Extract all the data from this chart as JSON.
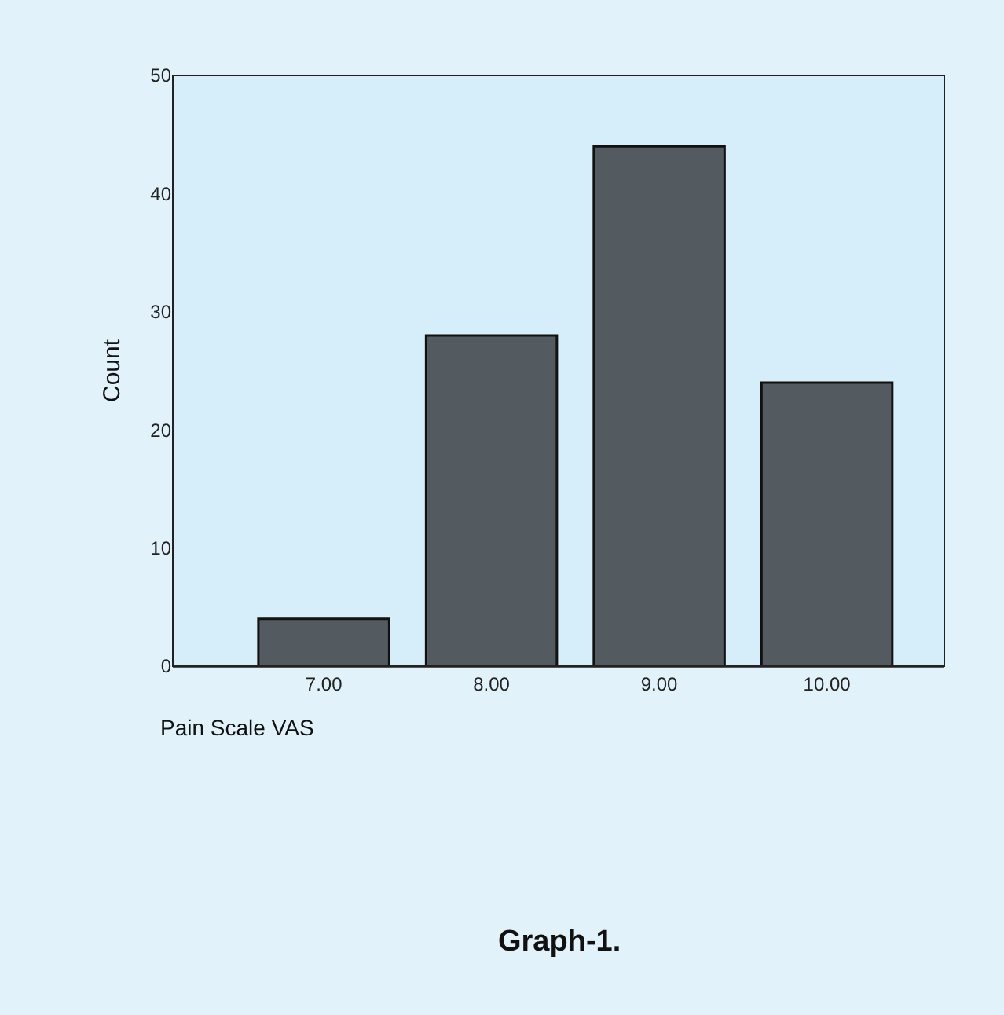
{
  "chart_data": {
    "type": "bar",
    "xlabel": "Pain Scale VAS",
    "ylabel": "Count",
    "categories": [
      "7.00",
      "8.00",
      "9.00",
      "10.00"
    ],
    "series": [
      {
        "color": "#545b60",
        "values": [
          4,
          28,
          44,
          24
        ]
      }
    ],
    "ylim": [
      0,
      50
    ],
    "yticks": [
      0,
      10,
      20,
      30,
      40,
      50
    ],
    "grid": false,
    "legend": false,
    "annotations": [
      "Graph-1."
    ]
  }
}
